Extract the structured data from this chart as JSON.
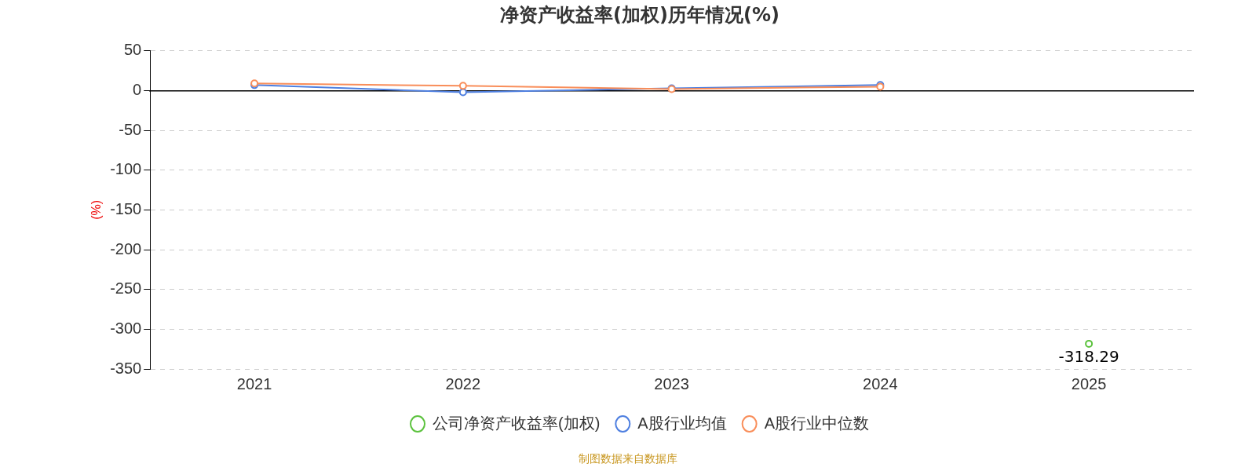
{
  "chart_data": {
    "type": "line",
    "title": "净资产收益率(加权)历年情况(%)",
    "ylabel": "(%)",
    "categories": [
      "2021",
      "2022",
      "2023",
      "2024",
      "2025"
    ],
    "series": [
      {
        "name": "公司净资产收益率(加权)",
        "color": "#5cc23e",
        "values": [
          null,
          null,
          null,
          null,
          -318.29
        ],
        "value_labels": [
          null,
          null,
          null,
          null,
          "-318.29"
        ]
      },
      {
        "name": "A股行业均值",
        "color": "#4e7fe0",
        "values": [
          7,
          -2,
          3,
          7,
          null
        ]
      },
      {
        "name": "A股行业中位数",
        "color": "#f98e5a",
        "values": [
          9,
          6,
          2,
          5,
          null
        ]
      }
    ],
    "ylim": [
      -350,
      50
    ],
    "yticks": [
      -350,
      -300,
      -250,
      -200,
      -150,
      -100,
      -50,
      0,
      50
    ],
    "grid": "y",
    "legend": "bottom",
    "marker": "circle",
    "line_style": "solid",
    "annotations": [
      "制图数据来自数据库"
    ]
  }
}
